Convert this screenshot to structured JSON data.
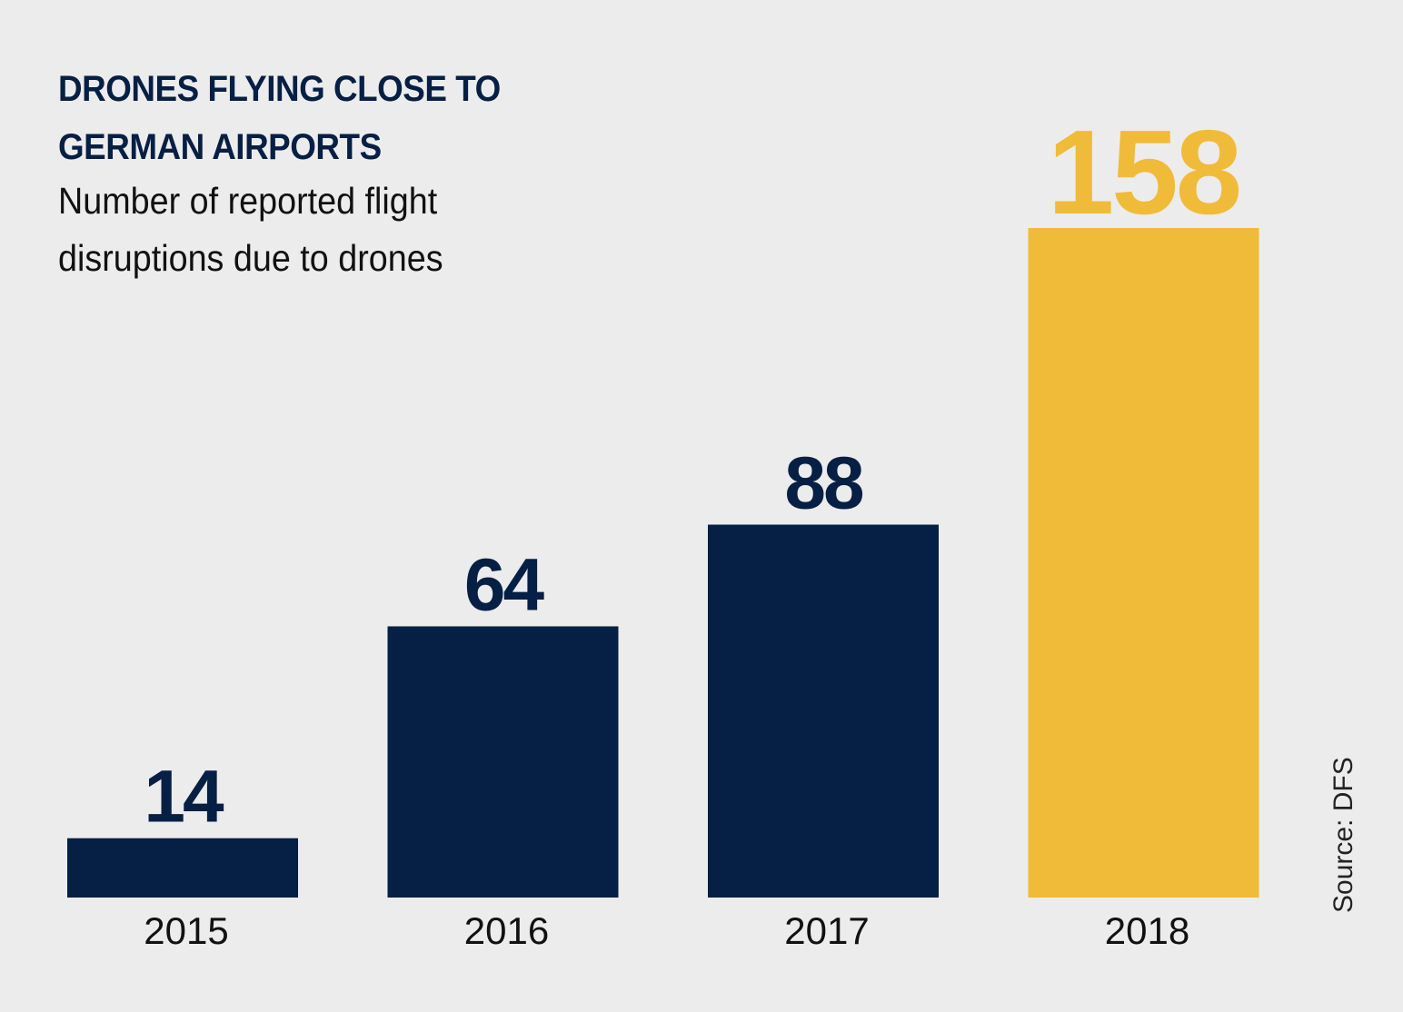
{
  "chart_data": {
    "type": "bar",
    "title": "DRONES FLYING CLOSE TO GERMAN AIRPORTS",
    "subtitle": "Number of reported flight disruptions due to drones",
    "categories": [
      "2015",
      "2016",
      "2017",
      "2018"
    ],
    "values": [
      14,
      64,
      88,
      158
    ],
    "data_labels": [
      "14",
      "64",
      "88",
      "158"
    ],
    "highlight_index": 3,
    "colors": {
      "default": "#061f44",
      "highlight": "#f0bb38"
    },
    "xlabel": "",
    "ylabel": "",
    "ylim": [
      0,
      158
    ],
    "grid": false,
    "source": "Source: DFS"
  }
}
